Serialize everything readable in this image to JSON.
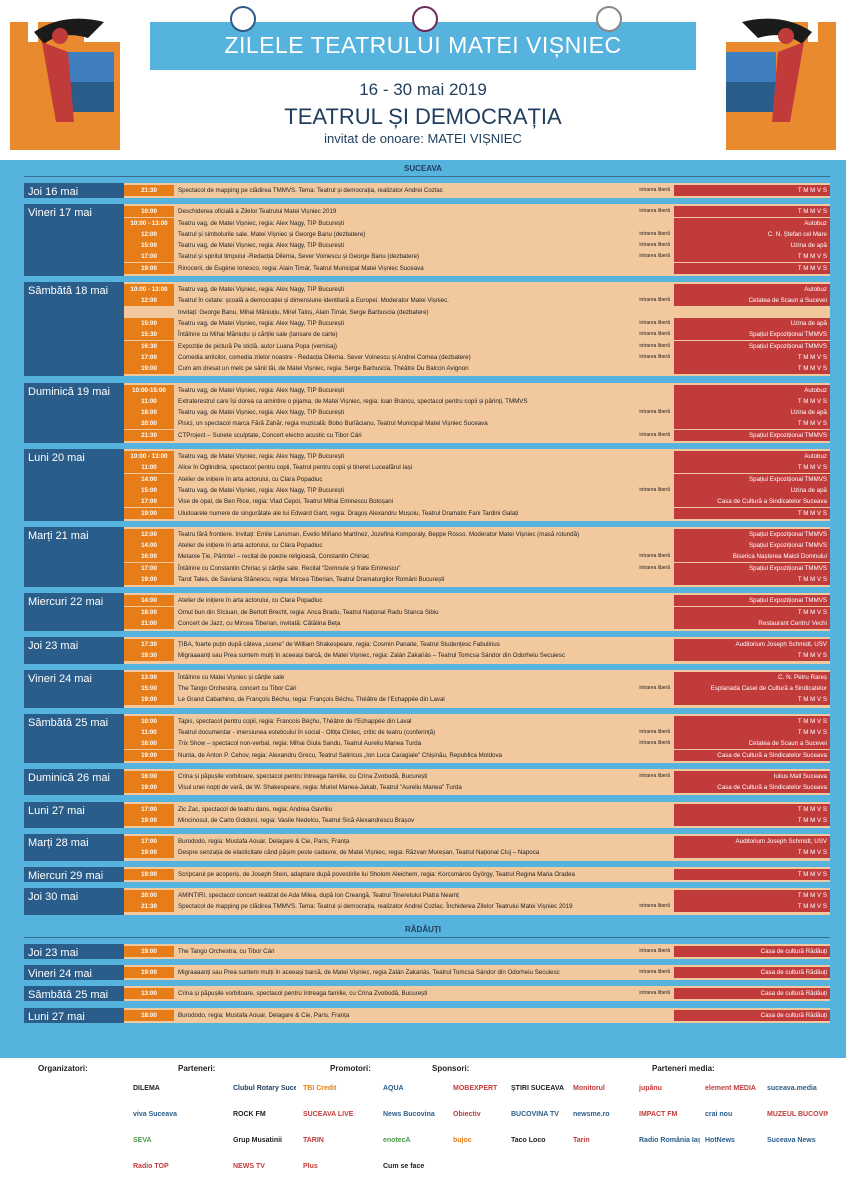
{
  "header": {
    "title": "ZILELE TEATRULUI MATEI VIȘNIEC",
    "dates": "16 - 30 mai 2019",
    "theme": "TEATRUL ȘI DEMOCRAȚIA",
    "guest": "invitat de onoare: MATEI VIȘNIEC",
    "logos": [
      "institutional-logo",
      "teatrul-logo",
      "coat-of-arms"
    ]
  },
  "sections": [
    {
      "name": "SUCEAVA",
      "days": [
        {
          "label": "Joi 16 mai",
          "rows": [
            {
              "time": "21:30",
              "desc": "Spectacol de mapping pe clădirea TMMVS. Tema: Teatrul și democrația, realizator Andrei Cozlac",
              "entry": "intrarea liberă",
              "venue": "T M M V S"
            }
          ]
        },
        {
          "label": "Vineri 17 mai",
          "rows": [
            {
              "time": "10:00",
              "desc": "Deschiderea oficială a Zilelor Teatrului Matei Vișniec 2019",
              "entry": "intrarea liberă",
              "venue": "T M M V S"
            },
            {
              "time": "10:00 - 13:00",
              "desc": "Teatru vag, de Matei Vișniec, regia: Alex Nagy, TIP București",
              "entry": "",
              "venue": "Autobuz"
            },
            {
              "time": "12:00",
              "desc": "Teatrul și simbolurile sale. Matei Vișniec și George Banu (dezbatere)",
              "entry": "intrarea liberă",
              "venue": "C. N. Ștefan cel Mare"
            },
            {
              "time": "15:00",
              "desc": "Teatru vag, de Matei Vișniec, regia: Alex Nagy, TIP București",
              "entry": "intrarea liberă",
              "venue": "Uzina de apă"
            },
            {
              "time": "17:00",
              "desc": "Teatrul și spiritul timpului -Redacția Dilema, Sever Voinescu și George Banu (dezbatere)",
              "entry": "intrarea liberă",
              "venue": "T M M V S"
            },
            {
              "time": "19:00",
              "desc": "Rinocerii, de Eugène Ionesco, regia: Alain Timár, Teatrul Municipal Matei Vișniec Suceava",
              "entry": "",
              "venue": "T M M V S"
            }
          ]
        },
        {
          "label": "Sâmbătă 18 mai",
          "rows": [
            {
              "time": "10:00 - 13:00",
              "desc": "Teatru vag, de Matei Vișniec, regia: Alex Nagy, TIP București",
              "entry": "",
              "venue": "Autobuz"
            },
            {
              "time": "12:00",
              "desc": "Teatrul în cetate: școală a democrației și dimensiune identitară a Europei. Moderator Matei Vișniec.",
              "entry": "intrarea liberă",
              "venue": "Cetatea de Scaun a Sucevei"
            },
            {
              "time": "",
              "desc": "Invitați: George Banu, Mihai Măniuțiu, Mirel Taloș, Alain Timár, Serge Barbuscia (dezbatere)",
              "entry": "",
              "venue": ""
            },
            {
              "time": "15:00",
              "desc": "Teatru vag, de Matei Vișniec, regia: Alex Nagy, TIP București",
              "entry": "intrarea liberă",
              "venue": "Uzina de apă"
            },
            {
              "time": "15:30",
              "desc": "Întâlnire cu Mihai Măniuțiu și cărțile sale (lansare de carte)",
              "entry": "intrarea liberă",
              "venue": "Spațiul Expozițional TMMVS"
            },
            {
              "time": "16:30",
              "desc": "Expoziție de pictură Pe sticlă, autor Luana Popa (vernisaj)",
              "entry": "intrarea liberă",
              "venue": "Spațiul Expozițional TMMVS"
            },
            {
              "time": "17:00",
              "desc": "Comedia anticilor, comedia zilelor noastre - Redacția Dilema. Sever Voinescu și Andrei Cornea (dezbatere)",
              "entry": "intrarea liberă",
              "venue": "T M M V S"
            },
            {
              "time": "19:00",
              "desc": "Cum am dresat un melc pe sânii tăi, de Matei Vișniec, regia: Serge Barbuscia, Théâtre Du Balcon Avignon",
              "entry": "",
              "venue": "T M M V S"
            }
          ]
        },
        {
          "label": "Duminică 19 mai",
          "rows": [
            {
              "time": "10:00-15:00",
              "desc": "Teatru vag, de Matei Vișniec, regia: Alex Nagy, TIP București",
              "entry": "",
              "venue": "Autobuz"
            },
            {
              "time": "11:00",
              "desc": "Extraterestrul care își dorea ca amintire o pijama, de Matei Vișniec, regia: Ioan Brancu, spectacol pentru copii și părinți, TMMVS",
              "entry": "",
              "venue": "T M M V S"
            },
            {
              "time": "18:00",
              "desc": "Teatru vag, de Matei Vișniec, regia: Alex Nagy, TIP București",
              "entry": "intrarea liberă",
              "venue": "Uzina de apă"
            },
            {
              "time": "20:00",
              "desc": "Pisici, un spectacol marca Fără Zahăr, regia muzicală: Bobo Burlăcianu, Teatrul Municipal Matei Vișniec Suceava",
              "entry": "",
              "venue": "T M M V S"
            },
            {
              "time": "21:30",
              "desc": "CTProject – Sunete sculptate, Concert electro acustic cu Tibor Cári",
              "entry": "intrarea liberă",
              "venue": "Spațiul Expozițional TMMVS"
            }
          ]
        },
        {
          "label": "Luni 20 mai",
          "rows": [
            {
              "time": "10:00 - 13:00",
              "desc": "Teatru vag, de Matei Vișniec, regia: Alex Nagy, TIP București",
              "entry": "",
              "venue": "Autobuz"
            },
            {
              "time": "11:00",
              "desc": "Alice în Oglindiria, spectacol pentru copii, Teatrul pentru copii și tineret Luceafărul Iași",
              "entry": "",
              "venue": "T M M V S"
            },
            {
              "time": "14:00",
              "desc": "Atelier de inițiere în arta actorului, cu Clara Popadiuc",
              "entry": "",
              "venue": "Spațiul Expozițional TMMVS"
            },
            {
              "time": "15:00",
              "desc": "Teatru vag, de Matei Vișniec, regia: Alex Nagy, TIP București",
              "entry": "intrarea liberă",
              "venue": "Uzina de apă"
            },
            {
              "time": "17:00",
              "desc": "Vise de opal, de Ben Rice, regia: Vlad Cepoi, Teatrul Mihai Eminescu Botoșani",
              "entry": "",
              "venue": "Casa de Cultură a Sindicatelor Suceava"
            },
            {
              "time": "19:00",
              "desc": "Uluitoarele numere de singurătate ale lui Edward Gant, regia: Dragoș Alexandru Mușoiu, Teatrul Dramatic Fani Tardini Galați",
              "entry": "",
              "venue": "T M M V S"
            }
          ]
        },
        {
          "label": "Marți 21 mai",
          "rows": [
            {
              "time": "12:00",
              "desc": "Teatru fără frontiere. Invitați: Emile Lansman, Evelio Miñano Martínez, Jozefina Komporaly, Beppe Rosso. Moderator Matei Vișniec (masă rotundă)",
              "entry": "",
              "venue": "Spațiul Expozițional TMMVS"
            },
            {
              "time": "14:00",
              "desc": "Atelier de inițiere în arta actorului, cu Clara Popadiuc",
              "entry": "",
              "venue": "Spațiul Expozițional TMMVS"
            },
            {
              "time": "16:00",
              "desc": "Metanie Ție, Părinte! – recital de poezie religioasă, Constantin Chiriac",
              "entry": "intrarea liberă",
              "venue": "Biserica Nașterea Maicii Domnului"
            },
            {
              "time": "17:00",
              "desc": "Întâlnire cu Constantin Chiriac și cărțile sale. Recital \"Domnule și frate Eminescu\"",
              "entry": "intrarea liberă",
              "venue": "Spațiul Expozițional TMMVS"
            },
            {
              "time": "19:00",
              "desc": "Tarot Tales, de Saviana Stănescu, regia: Mircea Tiberian, Teatrul Dramaturgilor Români București",
              "entry": "",
              "venue": "T M M V S"
            }
          ]
        },
        {
          "label": "Miercuri 22 mai",
          "rows": [
            {
              "time": "14:00",
              "desc": "Atelier de inițiere în arta actorului, cu Clara Popadiuc",
              "entry": "",
              "venue": "Spațiul Expozițional TMMVS"
            },
            {
              "time": "18:00",
              "desc": "Omul bun din Sîciuan, de Bertolt Brecht, regia: Anca Bradu, Teatrul Național Radu Stanca Sibiu",
              "entry": "",
              "venue": "T M M V S"
            },
            {
              "time": "21:00",
              "desc": "Concert de Jazz, cu Mircea Tiberian, invitată: Cătălina Beța",
              "entry": "",
              "venue": "Restaurant Centru' Vechi"
            }
          ]
        },
        {
          "label": "Joi 23 mai",
          "rows": [
            {
              "time": "17:30",
              "desc": "ȚIBA, foarte puțin după câteva „scene” de William Shakespeare, regia: Cosmin Panaite, Teatrul Studențesc Fabulinus",
              "entry": "",
              "venue": "Auditorium Joseph Schmidt, USV"
            },
            {
              "time": "19:30",
              "desc": "Migraaaanți sau Prea suntem mulți în aceeași barcă, de Matei Vișniec, regia: Zalán Zakariás – Teatrul Tomcsa Sándor din Odorheiu Secuiesc",
              "entry": "",
              "venue": "T M M V S"
            }
          ]
        },
        {
          "label": "Vineri 24 mai",
          "rows": [
            {
              "time": "13:00",
              "desc": "Întâlnire cu Matei Vișniec și cărțile sale",
              "entry": "",
              "venue": "C. N. Petru Rareș"
            },
            {
              "time": "15:00",
              "desc": "The Tango Orchestra, concert cu Tibor Cári",
              "entry": "intrarea liberă",
              "venue": "Esplanada Casei de Cultură a Sindicatelor"
            },
            {
              "time": "19:00",
              "desc": "Le Grand Cabarhino, de François Béchu, regia: François Béchu, Théâtre de l’Echappée din Laval",
              "entry": "",
              "venue": "T M M V S"
            }
          ]
        },
        {
          "label": "Sâmbătă 25 mai",
          "rows": [
            {
              "time": "10:00",
              "desc": "Tapis, spectacol pentru copii, regia: Francois Béçhu, Théâtre de l’Echappée din Laval",
              "entry": "",
              "venue": "T M M V S"
            },
            {
              "time": "11:00",
              "desc": "Teatrul documentar - imersiunea esteticului în social - Oltița Cîntec, critic de teatru (conferință)",
              "entry": "intrarea liberă",
              "venue": "T M M V S"
            },
            {
              "time": "16:00",
              "desc": "Trix Show – spectacol non-verbal, regia: Mihai Giula Sandu, Teatrul Aureliu Manea Turda",
              "entry": "intrarea liberă",
              "venue": "Cetatea de Scaun a Sucevei"
            },
            {
              "time": "19:00",
              "desc": "Nunta, de Anton P. Cehov, regia: Alexandru Grecu, Teatrul Satiricus „Ion Luca Caragiale” Chișinău, Republica Moldova",
              "entry": "",
              "venue": "Casa de Cultură a Sindicatelor Suceava"
            }
          ]
        },
        {
          "label": "Duminică 26 mai",
          "rows": [
            {
              "time": "16:00",
              "desc": "Crina și păpușile vorbitoare, spectacol pentru întreaga familie, cu Crina Zvobodă, București",
              "entry": "intrarea liberă",
              "venue": "Iulius Mall Suceava"
            },
            {
              "time": "19:00",
              "desc": "Visul unei nopți de vară, de W. Shakespeare, regia: Muriel Manea-Jakab, Teatrul \"Aureliu Manea\" Turda",
              "entry": "",
              "venue": "Casa de Cultură a Sindicatelor Suceava"
            }
          ]
        },
        {
          "label": "Luni 27 mai",
          "rows": [
            {
              "time": "17:00",
              "desc": "Zic Zac, spectacol de teatru dans, regia: Andrea Gavriliu",
              "entry": "",
              "venue": "T M M V S"
            },
            {
              "time": "19:00",
              "desc": "Mincinosul, de Carlo Goldoni, regia: Vasile Nedelcu, Teatrul Sică Alexandrescu Brașov",
              "entry": "",
              "venue": "T M M V S"
            }
          ]
        },
        {
          "label": "Marți 28 mai",
          "rows": [
            {
              "time": "17:00",
              "desc": "Burododo, regia: Mustafa Aouar, Delagare & Cie, Paris, Franța",
              "entry": "",
              "venue": "Auditorium Joseph Schmidt, USV"
            },
            {
              "time": "19:00",
              "desc": "Despre senzația de elasticitate când pășim peste cadavre, de Matei Vișniec, regia: Răzvan Mureșan, Teatrul Național Cluj – Napoca",
              "entry": "",
              "venue": "T M M V S"
            }
          ]
        },
        {
          "label": "Miercuri 29 mai",
          "rows": [
            {
              "time": "19:00",
              "desc": "Scripcarul pe acoperiș, de Joseph Stein, adaptare după povestirile lui Sholom Aleichem, regia: Korcsmáros György, Teatrul Regina Maria Oradea",
              "entry": "",
              "venue": "T M M V S"
            }
          ]
        },
        {
          "label": "Joi 30 mai",
          "rows": [
            {
              "time": "20:00",
              "desc": "AMINTIRI, spectacol concert realizat de Ada Milea, după Ion Creangă, Teatrul Tineretului Piatra Neamț",
              "entry": "",
              "venue": "T M M V S"
            },
            {
              "time": "21:30",
              "desc": "Spectacol de mapping pe clădirea TMMVS. Tema: Teatrul și democrația, realizator Andrei Cozlac. Închiderea Zilelor Teatrului Matei Vișniec 2019",
              "entry": "intrarea liberă",
              "venue": "T M M V S"
            }
          ]
        }
      ]
    },
    {
      "name": "RĂDĂUȚI",
      "days": [
        {
          "label": "Joi 23 mai",
          "rows": [
            {
              "time": "19:00",
              "desc": "The Tango Orchestra,  cu Tibor Cári",
              "entry": "intrarea liberă",
              "venue": "Casa de cultură Rădăuți"
            }
          ]
        },
        {
          "label": "Vineri 24 mai",
          "rows": [
            {
              "time": "19:00",
              "desc": "Migraaaanți sau Prea suntem mulți în aceeași barcă, de Matei Vișniec, regia Zalán Zakariás, Teatrul Tomcsa Sándor din Odorheiu Secuiesc",
              "entry": "intrarea liberă",
              "venue": "Casa de cultură Rădăuți"
            }
          ]
        },
        {
          "label": "Sâmbătă 25 mai",
          "rows": [
            {
              "time": "13:00",
              "desc": "Crina și păpușile vorbitoare, spectacol pentru întreaga familie, cu Crina Zvobodă, București",
              "entry": "intrarea liberă",
              "venue": "Casa de cultură Rădăuți"
            }
          ]
        },
        {
          "label": "Luni 27 mai",
          "rows": [
            {
              "time": "18:00",
              "desc": "Burododo, regia: Mustafa Aouar, Delagare & Cie, Paris, Franța",
              "entry": "",
              "venue": "Casa de cultură Rădăuți"
            }
          ]
        }
      ]
    }
  ],
  "footer": {
    "organizers_label": "Organizatori:",
    "partners_label": "Parteneri:",
    "promoters_label": "Promotori:",
    "sponsors_label": "Sponsori:",
    "media_label": "Parteneri media:",
    "logos": [
      {
        "text": "DILEMA",
        "color": "#222222"
      },
      {
        "text": "Clubul Rotary Suceava Bucovina",
        "color": "#1f3d5c"
      },
      {
        "text": "TBI Credit",
        "color": "#e77d19"
      },
      {
        "text": "AQUA",
        "color": "#2a5d8a"
      },
      {
        "text": "MOBEXPERT",
        "color": "#c23b3b"
      },
      {
        "text": "ȘTIRI SUCEAVA.NET",
        "color": "#222222"
      },
      {
        "text": "Monitorul",
        "color": "#c23b3b"
      },
      {
        "text": "jupânu",
        "color": "#c23b3b"
      },
      {
        "text": "element MEDIA",
        "color": "#c23b3b"
      },
      {
        "text": "suceava.media",
        "color": "#2a5d8a"
      },
      {
        "text": "viva Suceava",
        "color": "#2a5d8a"
      },
      {
        "text": "ROCK FM",
        "color": "#222222"
      },
      {
        "text": "SUCEAVA LIVE",
        "color": "#c23b3b"
      },
      {
        "text": "News Bucovina",
        "color": "#2a5d8a"
      },
      {
        "text": "Obiectiv",
        "color": "#c23b3b"
      },
      {
        "text": "BUCOVINA TV",
        "color": "#2a5d8a"
      },
      {
        "text": "newsme.ro",
        "color": "#2a5d8a"
      },
      {
        "text": "IMPACT FM",
        "color": "#c23b3b"
      },
      {
        "text": "crai nou",
        "color": "#2a5d8a"
      },
      {
        "text": "MUZEUL BUCOVINEI",
        "color": "#c23b3b"
      },
      {
        "text": "SEVA",
        "color": "#4a9a4a"
      },
      {
        "text": "Grup Musatinii",
        "color": "#222222"
      },
      {
        "text": "TARIN",
        "color": "#c23b3b"
      },
      {
        "text": "enotecA",
        "color": "#4a9a4a"
      },
      {
        "text": "bujoc",
        "color": "#e77d19"
      },
      {
        "text": "Taco Loco",
        "color": "#222222"
      },
      {
        "text": "Tarin",
        "color": "#c23b3b"
      },
      {
        "text": "Radio România Iași",
        "color": "#2a5d8a"
      },
      {
        "text": "HotNews",
        "color": "#2a5d8a"
      },
      {
        "text": "Suceava News",
        "color": "#2a5d8a"
      },
      {
        "text": "Radio TOP",
        "color": "#c23b3b"
      },
      {
        "text": "NEWS TV",
        "color": "#c23b3b"
      },
      {
        "text": "Plus",
        "color": "#c23b3b"
      },
      {
        "text": "Cum se face",
        "color": "#222222"
      }
    ]
  }
}
